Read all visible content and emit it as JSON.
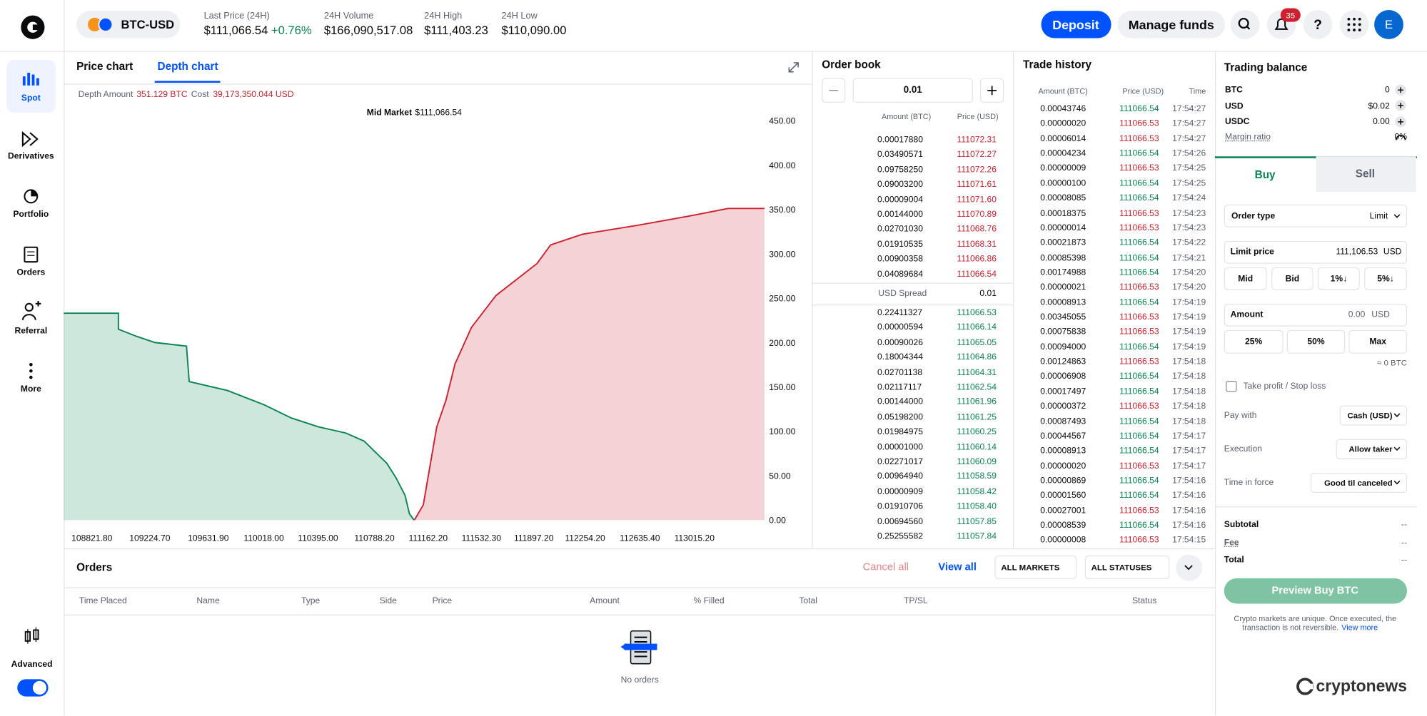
{
  "header": {
    "pair": "BTC-USD",
    "stats": [
      {
        "label": "Last Price (24H)",
        "value": "$111,066.54",
        "change": "+0.76%"
      },
      {
        "label": "24H Volume",
        "value": "$166,090,517.08"
      },
      {
        "label": "24H High",
        "value": "$111,403.23"
      },
      {
        "label": "24H Low",
        "value": "$110,090.00"
      }
    ],
    "deposit": "Deposit",
    "manage_funds": "Manage funds",
    "notifications": "35",
    "avatar": "E"
  },
  "sidebar": {
    "items": [
      "Spot",
      "Derivatives",
      "Portfolio",
      "Orders",
      "Referral",
      "More"
    ],
    "advanced": "Advanced"
  },
  "chart_panel": {
    "tabs": [
      "Price chart",
      "Depth chart"
    ],
    "depth_amount_label": "Depth Amount",
    "depth_amount": "351.129 BTC",
    "cost_label": "Cost",
    "cost": "39,173,350.044 USD",
    "mid_market_label": "Mid Market",
    "mid_market_value": "$111,066.54"
  },
  "chart_data": {
    "type": "area",
    "xlim": [
      108625.4,
      113502.9
    ],
    "ylim": [
      -8.2,
      463
    ],
    "xticks": [
      {
        "value": 108821.8,
        "label": "108821.80"
      },
      {
        "value": 109224.7,
        "label": "109224.70"
      },
      {
        "value": 109631.9,
        "label": "109631.90"
      },
      {
        "value": 110018,
        "label": "110018.00"
      },
      {
        "value": 110395,
        "label": "110395.00"
      },
      {
        "value": 110788.2,
        "label": "110788.20"
      },
      {
        "value": 111162.2,
        "label": "111162.20"
      },
      {
        "value": 111532.3,
        "label": "111532.30"
      },
      {
        "value": 111897.2,
        "label": "111897.20"
      },
      {
        "value": 112254.2,
        "label": "112254.20"
      },
      {
        "value": 112635.4,
        "label": "112635.40"
      },
      {
        "value": 113015.2,
        "label": "113015.20"
      }
    ],
    "yticks": [
      {
        "value": 0,
        "label": "0.00"
      },
      {
        "value": 50,
        "label": "50.00"
      },
      {
        "value": 100,
        "label": "100.00"
      },
      {
        "value": 150,
        "label": "150.00"
      },
      {
        "value": 200,
        "label": "200.00"
      },
      {
        "value": 250,
        "label": "250.00"
      },
      {
        "value": 300,
        "label": "300.00"
      },
      {
        "value": 350,
        "label": "350.00"
      },
      {
        "value": 400,
        "label": "400.00"
      },
      {
        "value": 450,
        "label": "450.00"
      }
    ],
    "series": [
      {
        "color": "#098551",
        "x": [
          108625,
          109006,
          109006,
          109132,
          109259,
          109480,
          109499,
          109765,
          110019,
          110209,
          110399,
          110589,
          110716,
          110779,
          110874,
          110937,
          111001,
          111032,
          111064
        ],
        "values": [
          233,
          233,
          215,
          207,
          200,
          196,
          156,
          146,
          130,
          115,
          105,
          98,
          89,
          79,
          64,
          48,
          28,
          7,
          0
        ]
      },
      {
        "color": "#cf202f",
        "x": [
          111066,
          111128,
          111222,
          111286,
          111349,
          111463,
          111634,
          111761,
          111919,
          112014,
          112236,
          112616,
          112996,
          113249,
          113502
        ],
        "values": [
          0,
          17,
          105,
          135,
          176,
          217,
          253,
          269,
          289,
          310,
          322,
          332,
          343,
          351,
          351
        ]
      }
    ]
  },
  "order_book": {
    "title": "Order book",
    "increment": "0.01",
    "columns": [
      "Amount (BTC)",
      "Price (USD)"
    ],
    "asks": [
      [
        "0.00017880",
        "111072.31"
      ],
      [
        "0.03490571",
        "111072.27"
      ],
      [
        "0.09758250",
        "111072.26"
      ],
      [
        "0.09003200",
        "111071.61"
      ],
      [
        "0.00009004",
        "111071.60"
      ],
      [
        "0.00144000",
        "111070.89"
      ],
      [
        "0.02701030",
        "111068.76"
      ],
      [
        "0.01910535",
        "111068.31"
      ],
      [
        "0.00900358",
        "111066.86"
      ],
      [
        "0.04089684",
        "111066.54"
      ]
    ],
    "spread_label": "USD Spread",
    "spread": "0.01",
    "bids": [
      [
        "0.22411327",
        "111066.53"
      ],
      [
        "0.00000594",
        "111066.14"
      ],
      [
        "0.00090026",
        "111065.05"
      ],
      [
        "0.18004344",
        "111064.86"
      ],
      [
        "0.02701138",
        "111064.31"
      ],
      [
        "0.02117117",
        "111062.54"
      ],
      [
        "0.00144000",
        "111061.96"
      ],
      [
        "0.05198200",
        "111061.25"
      ],
      [
        "0.01984975",
        "111060.25"
      ],
      [
        "0.00001000",
        "111060.14"
      ],
      [
        "0.02271017",
        "111060.09"
      ],
      [
        "0.00964940",
        "111058.59"
      ],
      [
        "0.00000909",
        "111058.42"
      ],
      [
        "0.01910706",
        "111058.40"
      ],
      [
        "0.00694560",
        "111057.85"
      ],
      [
        "0.25255582",
        "111057.84"
      ]
    ]
  },
  "trade_history": {
    "title": "Trade history",
    "columns": [
      "Amount (BTC)",
      "Price (USD)",
      "Time"
    ],
    "rows": [
      {
        "amount": "0.00043746",
        "price": "111066.54",
        "time": "17:54:27",
        "color": "#098551"
      },
      {
        "amount": "0.00000020",
        "price": "111066.53",
        "time": "17:54:27",
        "color": "#cf202f"
      },
      {
        "amount": "0.00006014",
        "price": "111066.53",
        "time": "17:54:27",
        "color": "#cf202f"
      },
      {
        "amount": "0.00004234",
        "price": "111066.54",
        "time": "17:54:26",
        "color": "#098551"
      },
      {
        "amount": "0.00000009",
        "price": "111066.53",
        "time": "17:54:25",
        "color": "#cf202f"
      },
      {
        "amount": "0.00000100",
        "price": "111066.54",
        "time": "17:54:25",
        "color": "#098551"
      },
      {
        "amount": "0.00008085",
        "price": "111066.54",
        "time": "17:54:24",
        "color": "#098551"
      },
      {
        "amount": "0.00018375",
        "price": "111066.53",
        "time": "17:54:23",
        "color": "#cf202f"
      },
      {
        "amount": "0.00000014",
        "price": "111066.53",
        "time": "17:54:23",
        "color": "#cf202f"
      },
      {
        "amount": "0.00021873",
        "price": "111066.54",
        "time": "17:54:22",
        "color": "#098551"
      },
      {
        "amount": "0.00085398",
        "price": "111066.54",
        "time": "17:54:21",
        "color": "#098551"
      },
      {
        "amount": "0.00174988",
        "price": "111066.54",
        "time": "17:54:20",
        "color": "#098551"
      },
      {
        "amount": "0.00000021",
        "price": "111066.53",
        "time": "17:54:20",
        "color": "#cf202f"
      },
      {
        "amount": "0.00008913",
        "price": "111066.54",
        "time": "17:54:19",
        "color": "#098551"
      },
      {
        "amount": "0.00345055",
        "price": "111066.53",
        "time": "17:54:19",
        "color": "#cf202f"
      },
      {
        "amount": "0.00075838",
        "price": "111066.53",
        "time": "17:54:19",
        "color": "#cf202f"
      },
      {
        "amount": "0.00094000",
        "price": "111066.54",
        "time": "17:54:19",
        "color": "#098551"
      },
      {
        "amount": "0.00124863",
        "price": "111066.53",
        "time": "17:54:18",
        "color": "#cf202f"
      },
      {
        "amount": "0.00006908",
        "price": "111066.54",
        "time": "17:54:18",
        "color": "#098551"
      },
      {
        "amount": "0.00017497",
        "price": "111066.54",
        "time": "17:54:18",
        "color": "#098551"
      },
      {
        "amount": "0.00000372",
        "price": "111066.53",
        "time": "17:54:18",
        "color": "#cf202f"
      },
      {
        "amount": "0.00087493",
        "price": "111066.54",
        "time": "17:54:18",
        "color": "#098551"
      },
      {
        "amount": "0.00044567",
        "price": "111066.54",
        "time": "17:54:17",
        "color": "#098551"
      },
      {
        "amount": "0.00008913",
        "price": "111066.54",
        "time": "17:54:17",
        "color": "#098551"
      },
      {
        "amount": "0.00000020",
        "price": "111066.53",
        "time": "17:54:17",
        "color": "#cf202f"
      },
      {
        "amount": "0.00000869",
        "price": "111066.54",
        "time": "17:54:16",
        "color": "#098551"
      },
      {
        "amount": "0.00001560",
        "price": "111066.54",
        "time": "17:54:16",
        "color": "#098551"
      },
      {
        "amount": "0.00027001",
        "price": "111066.53",
        "time": "17:54:16",
        "color": "#cf202f"
      },
      {
        "amount": "0.00008539",
        "price": "111066.54",
        "time": "17:54:16",
        "color": "#098551"
      },
      {
        "amount": "0.00000008",
        "price": "111066.53",
        "time": "17:54:15",
        "color": "#cf202f"
      }
    ]
  },
  "trading_balance": {
    "title": "Trading balance",
    "rows": [
      [
        "BTC",
        "0"
      ],
      [
        "USD",
        "$0.02"
      ],
      [
        "USDC",
        "0.00"
      ]
    ],
    "margin_label": "Margin ratio",
    "margin_value": "0%"
  },
  "order_form": {
    "tabs": [
      "Buy",
      "Sell"
    ],
    "order_type_label": "Order type",
    "order_type": "Limit",
    "limit_price_label": "Limit price",
    "limit_price": "111,106.53",
    "limit_unit": "USD",
    "price_buttons": [
      "Mid",
      "Bid",
      "1%↓",
      "5%↓"
    ],
    "amount_label": "Amount",
    "amount": "0.00",
    "amount_unit": "USD",
    "amount_buttons": [
      "25%",
      "50%",
      "Max"
    ],
    "approx": "≈ 0 BTC",
    "tpsl": "Take profit / Stop loss",
    "pay_with_label": "Pay with",
    "pay_with": "Cash (USD)",
    "execution_label": "Execution",
    "execution": "Allow taker",
    "time_in_force_label": "Time in force",
    "time_in_force": "Good til canceled",
    "summary": [
      [
        "Subtotal",
        "--"
      ],
      [
        "Fee",
        "--"
      ],
      [
        "Total",
        "--"
      ]
    ],
    "submit": "Preview Buy BTC",
    "disclaimer_1": "Crypto markets are unique. Once executed, the",
    "disclaimer_2": "transaction is not reversible.",
    "view_more": "View more"
  },
  "orders": {
    "title": "Orders",
    "cancel_all": "Cancel all",
    "view_all": "View all",
    "markets": "ALL MARKETS",
    "statuses": "ALL STATUSES",
    "columns": [
      "Time Placed",
      "Name",
      "Type",
      "Side",
      "Price",
      "Amount",
      "% Filled",
      "Total",
      "TP/SL",
      "Status"
    ],
    "empty": "No orders"
  },
  "watermark": "cryptonews"
}
